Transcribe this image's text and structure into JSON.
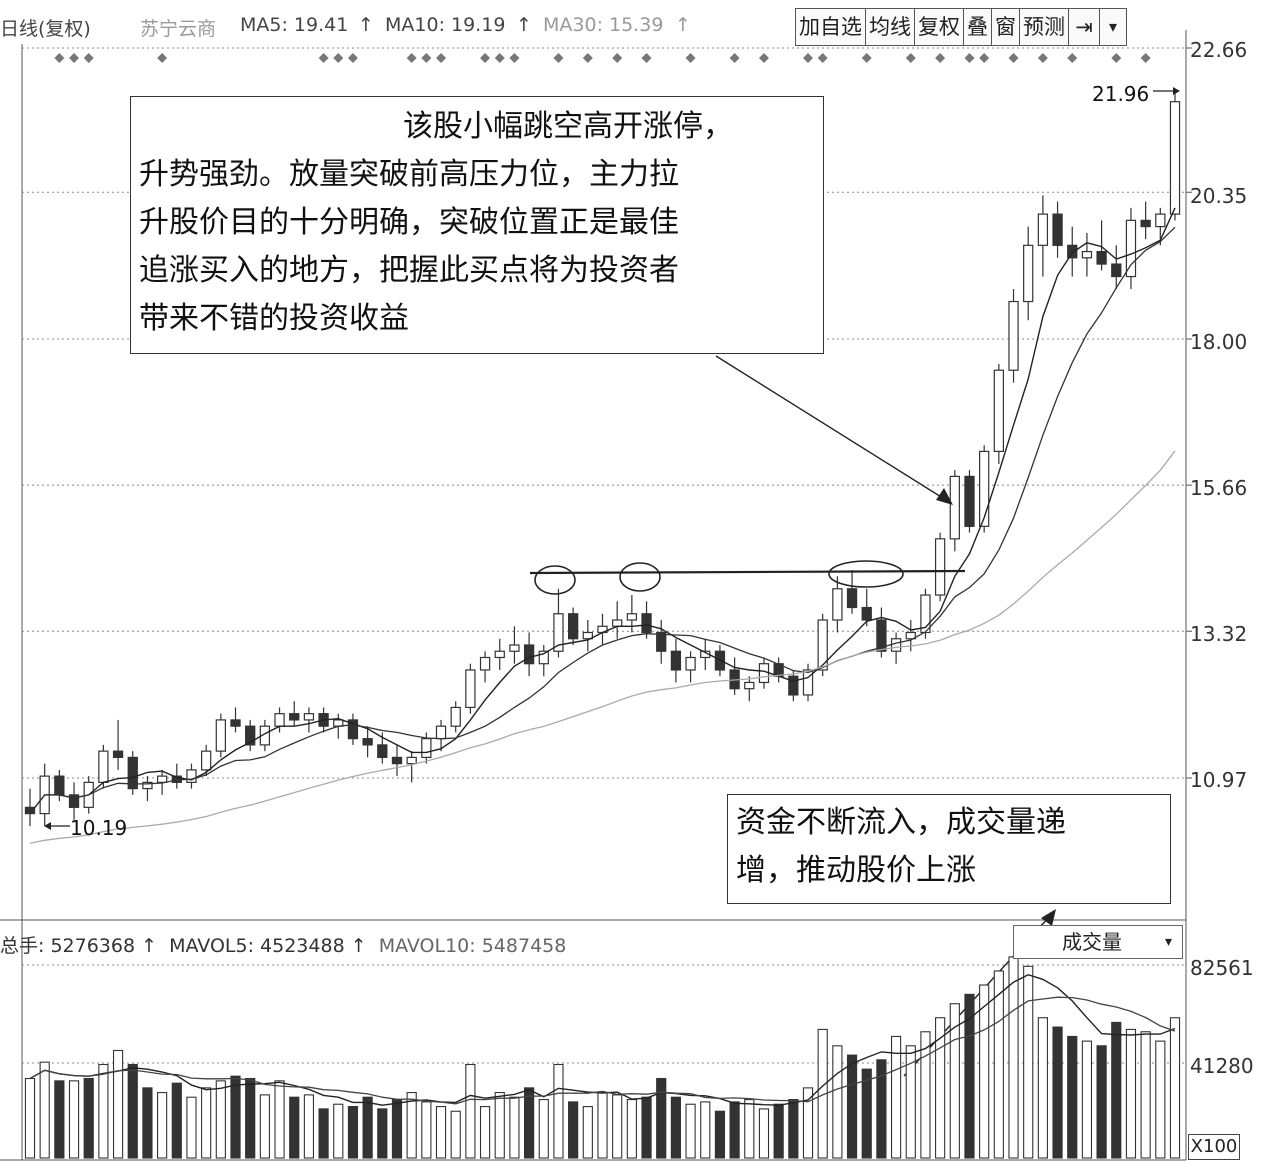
{
  "header": {
    "period": "日线(复权)",
    "stock": "苏宁云商",
    "ma5": "MA5: 19.41",
    "ma10": "MA10: 19.19",
    "ma30": "MA30: 15.39",
    "arrow": "↑"
  },
  "toolbar": {
    "add": "加自选",
    "ma": "均线",
    "fq": "复权",
    "overlay": "叠",
    "window": "窗",
    "predict": "预测",
    "pin": "⇥",
    "menu": "▾"
  },
  "price_axis": [
    "22.66",
    "20.35",
    "18.00",
    "15.66",
    "13.32",
    "10.97"
  ],
  "markers": {
    "high": "21.96",
    "low": "10.19"
  },
  "note1": {
    "lines": [
      "该股小幅跳空高开涨停，",
      "升势强劲。放量突破前高压力位，主力拉",
      "升股价目的十分明确，突破位置正是最佳",
      "追涨买入的地方，把握此买点将为投资者",
      "带来不错的投资收益"
    ]
  },
  "note2": {
    "lines": [
      "资金不断流入，成交量递",
      "增，推动股价上涨"
    ]
  },
  "volume": {
    "total": "总手: 5276368",
    "mavol5": "MAVOL5: 4523488",
    "mavol10": "MAVOL10: 5487458",
    "arrow": "↑",
    "selector": "成交量",
    "selector_arrow": "▾",
    "axis": [
      "82561",
      "41280"
    ],
    "unit": "X100"
  },
  "colors": {
    "candle_up": "#ffffff",
    "candle_down": "#333333",
    "grid": "#888888"
  },
  "chart_data": {
    "type": "candlestick",
    "price_ticks": [
      22.66,
      20.35,
      18.0,
      15.66,
      13.32,
      10.97
    ],
    "ylim": [
      9.0,
      22.66
    ],
    "candles": [
      [
        10.5,
        10.8,
        10.2,
        10.4
      ],
      [
        10.4,
        11.2,
        10.2,
        11.0
      ],
      [
        11.0,
        11.1,
        10.6,
        10.7
      ],
      [
        10.7,
        10.9,
        10.3,
        10.5
      ],
      [
        10.5,
        11.0,
        10.4,
        10.9
      ],
      [
        10.9,
        11.5,
        10.8,
        11.4
      ],
      [
        11.4,
        11.9,
        11.1,
        11.3
      ],
      [
        11.3,
        11.4,
        10.7,
        10.8
      ],
      [
        10.8,
        11.0,
        10.6,
        10.9
      ],
      [
        10.9,
        11.1,
        10.7,
        11.0
      ],
      [
        11.0,
        11.2,
        10.8,
        10.9
      ],
      [
        10.9,
        11.2,
        10.8,
        11.1
      ],
      [
        11.1,
        11.5,
        11.0,
        11.4
      ],
      [
        11.4,
        12.0,
        11.3,
        11.9
      ],
      [
        11.9,
        12.1,
        11.7,
        11.8
      ],
      [
        11.8,
        11.9,
        11.4,
        11.5
      ],
      [
        11.5,
        11.9,
        11.4,
        11.8
      ],
      [
        11.8,
        12.1,
        11.7,
        12.0
      ],
      [
        12.0,
        12.2,
        11.8,
        11.9
      ],
      [
        11.9,
        12.1,
        11.7,
        12.0
      ],
      [
        12.0,
        12.1,
        11.7,
        11.8
      ],
      [
        11.8,
        12.0,
        11.6,
        11.9
      ],
      [
        11.9,
        12.0,
        11.5,
        11.6
      ],
      [
        11.6,
        11.8,
        11.3,
        11.5
      ],
      [
        11.5,
        11.7,
        11.2,
        11.3
      ],
      [
        11.3,
        11.5,
        11.0,
        11.2
      ],
      [
        11.2,
        11.4,
        10.9,
        11.3
      ],
      [
        11.3,
        11.7,
        11.2,
        11.6
      ],
      [
        11.6,
        11.9,
        11.4,
        11.8
      ],
      [
        11.8,
        12.2,
        11.7,
        12.1
      ],
      [
        12.1,
        12.8,
        12.0,
        12.7
      ],
      [
        12.7,
        13.0,
        12.5,
        12.9
      ],
      [
        12.9,
        13.2,
        12.7,
        13.0
      ],
      [
        13.0,
        13.4,
        12.8,
        13.1
      ],
      [
        13.1,
        13.3,
        12.6,
        12.8
      ],
      [
        12.8,
        13.1,
        12.6,
        13.0
      ],
      [
        13.0,
        14.0,
        12.9,
        13.6
      ],
      [
        13.6,
        13.7,
        13.1,
        13.2
      ],
      [
        13.2,
        13.5,
        13.0,
        13.3
      ],
      [
        13.3,
        13.6,
        13.1,
        13.4
      ],
      [
        13.4,
        13.8,
        13.2,
        13.5
      ],
      [
        13.5,
        13.9,
        13.3,
        13.6
      ],
      [
        13.6,
        13.8,
        13.2,
        13.3
      ],
      [
        13.3,
        13.5,
        12.8,
        13.0
      ],
      [
        13.0,
        13.2,
        12.5,
        12.7
      ],
      [
        12.7,
        13.0,
        12.5,
        12.9
      ],
      [
        12.9,
        13.2,
        12.7,
        13.0
      ],
      [
        13.0,
        13.1,
        12.6,
        12.7
      ],
      [
        12.7,
        12.9,
        12.3,
        12.4
      ],
      [
        12.4,
        12.6,
        12.2,
        12.5
      ],
      [
        12.5,
        12.9,
        12.4,
        12.8
      ],
      [
        12.8,
        12.9,
        12.5,
        12.6
      ],
      [
        12.6,
        12.7,
        12.2,
        12.3
      ],
      [
        12.3,
        12.8,
        12.2,
        12.7
      ],
      [
        12.7,
        13.6,
        12.6,
        13.5
      ],
      [
        13.5,
        14.2,
        13.3,
        14.0
      ],
      [
        14.0,
        14.3,
        13.6,
        13.7
      ],
      [
        13.7,
        14.0,
        13.4,
        13.5
      ],
      [
        13.5,
        13.7,
        12.9,
        13.0
      ],
      [
        13.0,
        13.3,
        12.8,
        13.2
      ],
      [
        13.2,
        13.5,
        13.0,
        13.3
      ],
      [
        13.3,
        14.0,
        13.2,
        13.9
      ],
      [
        13.9,
        14.9,
        13.8,
        14.8
      ],
      [
        14.8,
        15.9,
        14.6,
        15.8
      ],
      [
        15.8,
        15.9,
        14.9,
        15.0
      ],
      [
        15.0,
        16.3,
        14.9,
        16.2
      ],
      [
        16.2,
        17.6,
        16.0,
        17.5
      ],
      [
        17.5,
        18.8,
        17.3,
        18.6
      ],
      [
        18.6,
        19.8,
        18.3,
        19.5
      ],
      [
        19.5,
        20.3,
        19.0,
        20.0
      ],
      [
        20.0,
        20.2,
        19.3,
        19.5
      ],
      [
        19.5,
        19.8,
        19.0,
        19.3
      ],
      [
        19.3,
        19.7,
        19.0,
        19.4
      ],
      [
        19.4,
        19.9,
        19.1,
        19.2
      ],
      [
        19.2,
        19.5,
        18.8,
        19.0
      ],
      [
        19.0,
        20.1,
        18.8,
        19.9
      ],
      [
        19.9,
        20.2,
        19.6,
        19.8
      ],
      [
        19.8,
        20.1,
        19.5,
        20.0
      ],
      [
        20.0,
        21.96,
        19.9,
        21.8
      ]
    ],
    "volume_ticks": [
      82561,
      41280
    ],
    "volumes": [
      34,
      41,
      33,
      33,
      34,
      40,
      46,
      40,
      30,
      28,
      32,
      26,
      30,
      33,
      35,
      34,
      27,
      33,
      26,
      27,
      21,
      23,
      22,
      26,
      21,
      25,
      28,
      24,
      22,
      20,
      40,
      22,
      28,
      26,
      30,
      25,
      40,
      24,
      22,
      28,
      27,
      25,
      26,
      34,
      26,
      23,
      24,
      20,
      24,
      25,
      21,
      23,
      25,
      30,
      55,
      48,
      44,
      38,
      42,
      52,
      48,
      54,
      60,
      66,
      70,
      74,
      80,
      86,
      82,
      60,
      56,
      52,
      50,
      48,
      58,
      55,
      54,
      50,
      60
    ],
    "volume_down": [
      false,
      false,
      true,
      false,
      true,
      false,
      false,
      true,
      true,
      false,
      true,
      false,
      false,
      false,
      true,
      true,
      false,
      false,
      true,
      false,
      true,
      false,
      true,
      true,
      true,
      true,
      false,
      false,
      false,
      false,
      false,
      false,
      false,
      false,
      true,
      false,
      false,
      true,
      false,
      false,
      false,
      false,
      true,
      true,
      true,
      false,
      false,
      true,
      true,
      false,
      false,
      true,
      true,
      false,
      false,
      false,
      true,
      true,
      true,
      false,
      false,
      false,
      false,
      false,
      true,
      false,
      false,
      false,
      false,
      false,
      true,
      true,
      false,
      true,
      true,
      false,
      false,
      false,
      false
    ]
  }
}
